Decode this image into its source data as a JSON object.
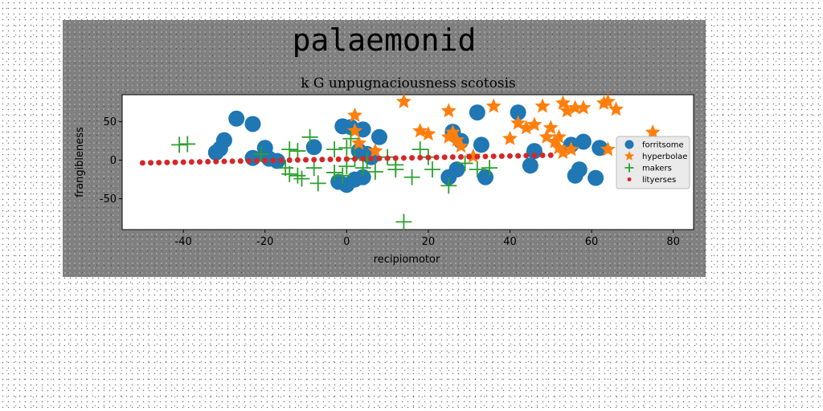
{
  "chart_data": {
    "type": "scatter",
    "title": "palaemonid",
    "subtitle": "k G unpugnaciousness scotosis",
    "xlabel": "recipiomotor",
    "ylabel": "frangibleness",
    "xlim": [
      -55,
      85
    ],
    "ylim": [
      -90,
      85
    ],
    "xticks": [
      -40,
      -20,
      0,
      20,
      40,
      60,
      80
    ],
    "yticks": [
      -50,
      0,
      50
    ],
    "grid": false,
    "legend_position": "right",
    "series": [
      {
        "name": "forritsome",
        "marker": "circle",
        "color": "#1f77b4",
        "points": [
          [
            -27,
            54
          ],
          [
            -23,
            47
          ],
          [
            -30,
            26
          ],
          [
            -31,
            15
          ],
          [
            -32,
            10
          ],
          [
            -23,
            3
          ],
          [
            -20,
            16
          ],
          [
            -19,
            2
          ],
          [
            -17,
            -1
          ],
          [
            -8,
            17
          ],
          [
            -1,
            44
          ],
          [
            1,
            43
          ],
          [
            4,
            40
          ],
          [
            8,
            30
          ],
          [
            -2,
            -28
          ],
          [
            0,
            -32
          ],
          [
            2,
            -25
          ],
          [
            4,
            -22
          ],
          [
            3,
            12
          ],
          [
            5,
            8
          ],
          [
            6,
            4
          ],
          [
            26,
            37
          ],
          [
            28,
            25
          ],
          [
            25,
            -22
          ],
          [
            27,
            -12
          ],
          [
            32,
            62
          ],
          [
            33,
            20
          ],
          [
            34,
            -22
          ],
          [
            42,
            62
          ],
          [
            45,
            -7
          ],
          [
            46,
            12
          ],
          [
            55,
            20
          ],
          [
            58,
            24
          ],
          [
            56,
            -20
          ],
          [
            57,
            -12
          ],
          [
            61,
            -23
          ],
          [
            62,
            16
          ]
        ]
      },
      {
        "name": "hyperbolae",
        "marker": "star",
        "color": "#ff7f0e",
        "points": [
          [
            2,
            58
          ],
          [
            2,
            38
          ],
          [
            3,
            22
          ],
          [
            7,
            12
          ],
          [
            14,
            76
          ],
          [
            18,
            38
          ],
          [
            20,
            34
          ],
          [
            25,
            30
          ],
          [
            25,
            64
          ],
          [
            26,
            36
          ],
          [
            27,
            26
          ],
          [
            28,
            18
          ],
          [
            31,
            5
          ],
          [
            36,
            70
          ],
          [
            40,
            28
          ],
          [
            42,
            48
          ],
          [
            44,
            42
          ],
          [
            46,
            46
          ],
          [
            48,
            70
          ],
          [
            49,
            30
          ],
          [
            50,
            42
          ],
          [
            51,
            24
          ],
          [
            52,
            30
          ],
          [
            53,
            74
          ],
          [
            54,
            64
          ],
          [
            55,
            14
          ],
          [
            56,
            68
          ],
          [
            58,
            68
          ],
          [
            63,
            74
          ],
          [
            64,
            76
          ],
          [
            66,
            66
          ],
          [
            64,
            14
          ],
          [
            75,
            36
          ],
          [
            52,
            16
          ],
          [
            53,
            10
          ]
        ]
      },
      {
        "name": "makers",
        "marker": "plus",
        "color": "#2ca02c",
        "points": [
          [
            -41,
            20
          ],
          [
            -39,
            21
          ],
          [
            -21,
            8
          ],
          [
            -14,
            14
          ],
          [
            -12,
            12
          ],
          [
            -15,
            -10
          ],
          [
            -14,
            -18
          ],
          [
            -12,
            -20
          ],
          [
            -11,
            -24
          ],
          [
            -9,
            30
          ],
          [
            -8,
            -10
          ],
          [
            -7,
            -30
          ],
          [
            -3,
            14
          ],
          [
            -3,
            -16
          ],
          [
            -1,
            -20
          ],
          [
            0,
            16
          ],
          [
            0,
            -8
          ],
          [
            1,
            28
          ],
          [
            2,
            2
          ],
          [
            4,
            -10
          ],
          [
            5,
            0
          ],
          [
            7,
            -15
          ],
          [
            10,
            4
          ],
          [
            12,
            -12
          ],
          [
            12,
            -6
          ],
          [
            14,
            -80
          ],
          [
            16,
            -22
          ],
          [
            18,
            14
          ],
          [
            21,
            -12
          ],
          [
            20,
            4
          ],
          [
            25,
            -33
          ],
          [
            29,
            -4
          ],
          [
            32,
            -12
          ],
          [
            35,
            -10
          ]
        ]
      },
      {
        "name": "lityerses",
        "marker": "dot",
        "color": "#d62728",
        "points": [
          [
            -50,
            -3.5
          ],
          [
            -48,
            -3.3
          ],
          [
            -46,
            -3.1
          ],
          [
            -44,
            -2.9
          ],
          [
            -42,
            -2.7
          ],
          [
            -40,
            -2.5
          ],
          [
            -38,
            -2.3
          ],
          [
            -36,
            -2.1
          ],
          [
            -34,
            -1.9
          ],
          [
            -32,
            -1.7
          ],
          [
            -30,
            -1.5
          ],
          [
            -28,
            -1.3
          ],
          [
            -26,
            -1.1
          ],
          [
            -24,
            -0.9
          ],
          [
            -22,
            -0.7
          ],
          [
            -20,
            -0.5
          ],
          [
            -18,
            -0.3
          ],
          [
            -16,
            -0.1
          ],
          [
            -14,
            0.1
          ],
          [
            -12,
            0.3
          ],
          [
            -10,
            0.5
          ],
          [
            -8,
            0.7
          ],
          [
            -6,
            0.9
          ],
          [
            -4,
            1.1
          ],
          [
            -2,
            1.3
          ],
          [
            0,
            1.5
          ],
          [
            2,
            1.7
          ],
          [
            4,
            1.9
          ],
          [
            6,
            2.1
          ],
          [
            8,
            2.3
          ],
          [
            10,
            2.5
          ],
          [
            12,
            2.7
          ],
          [
            14,
            2.9
          ],
          [
            16,
            3.1
          ],
          [
            18,
            3.3
          ],
          [
            20,
            3.5
          ],
          [
            22,
            3.7
          ],
          [
            24,
            3.9
          ],
          [
            26,
            4.1
          ],
          [
            28,
            4.3
          ],
          [
            30,
            4.5
          ],
          [
            32,
            4.7
          ],
          [
            34,
            4.9
          ],
          [
            36,
            5.1
          ],
          [
            38,
            5.3
          ],
          [
            40,
            5.5
          ],
          [
            42,
            5.7
          ],
          [
            44,
            5.9
          ],
          [
            46,
            6.1
          ],
          [
            48,
            6.3
          ],
          [
            50,
            6.5
          ]
        ]
      }
    ]
  }
}
